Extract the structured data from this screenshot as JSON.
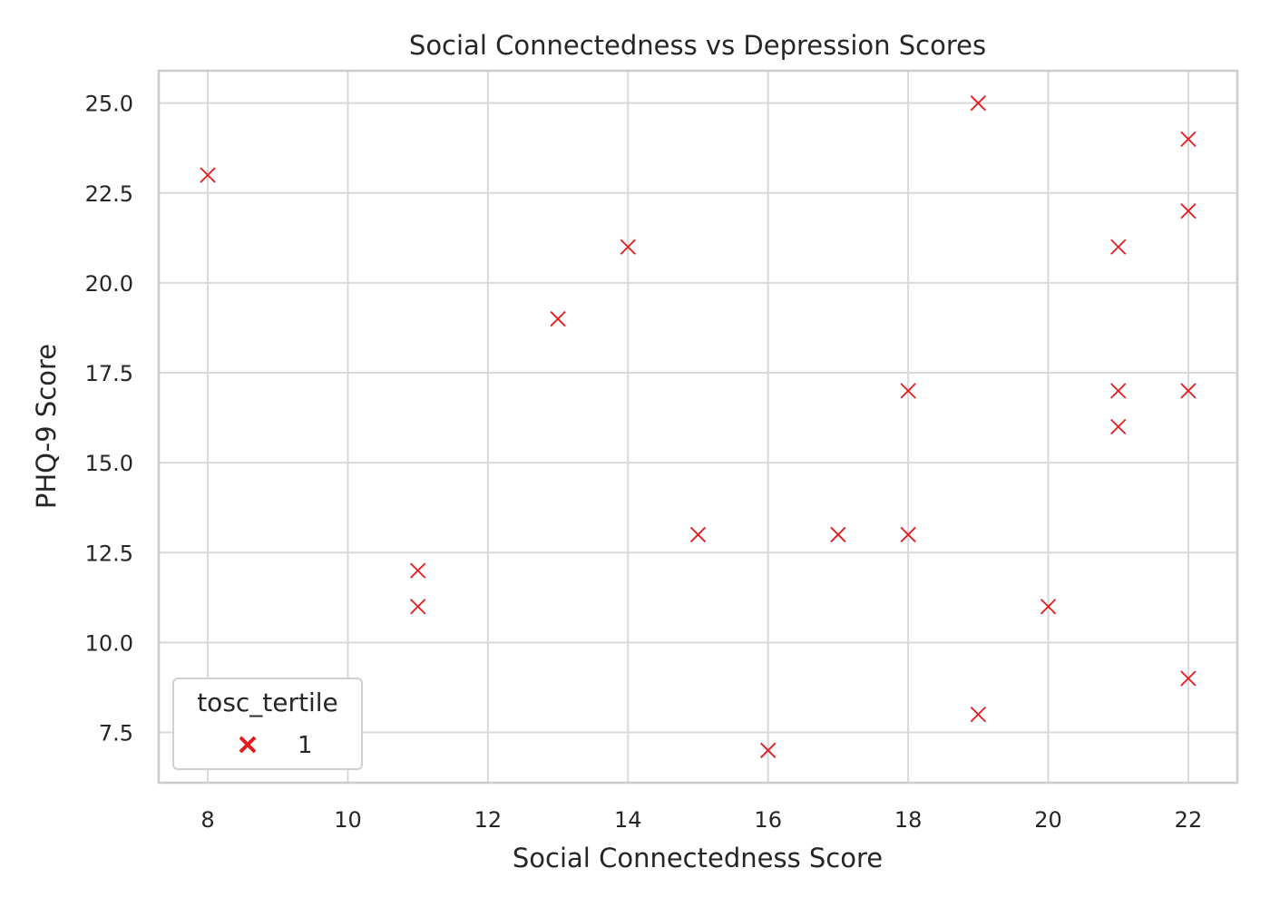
{
  "chart_data": {
    "type": "scatter",
    "title": "Social Connectedness vs Depression Scores",
    "xlabel": "Social Connectedness Score",
    "ylabel": "PHQ-9 Score",
    "xlim": [
      7.3,
      22.7
    ],
    "ylim": [
      6.1,
      25.9
    ],
    "xticks": [
      8,
      10,
      12,
      14,
      16,
      18,
      20,
      22
    ],
    "yticks": [
      7.5,
      10.0,
      12.5,
      15.0,
      17.5,
      20.0,
      22.5,
      25.0
    ],
    "xtick_labels": [
      "8",
      "10",
      "12",
      "14",
      "16",
      "18",
      "20",
      "22"
    ],
    "ytick_labels": [
      "7.5",
      "10.0",
      "12.5",
      "15.0",
      "17.5",
      "20.0",
      "22.5",
      "25.0"
    ],
    "grid": true,
    "marker": "x",
    "marker_color": "#e41a1c",
    "legend": {
      "title": "tosc_tertile",
      "placement": "lower-left",
      "entries": [
        {
          "label": "1",
          "color": "#e41a1c",
          "marker": "x"
        }
      ]
    },
    "series": [
      {
        "name": "1",
        "points": [
          {
            "x": 8,
            "y": 23
          },
          {
            "x": 11,
            "y": 12
          },
          {
            "x": 11,
            "y": 11
          },
          {
            "x": 13,
            "y": 19
          },
          {
            "x": 14,
            "y": 21
          },
          {
            "x": 15,
            "y": 13
          },
          {
            "x": 16,
            "y": 7
          },
          {
            "x": 17,
            "y": 13
          },
          {
            "x": 18,
            "y": 17
          },
          {
            "x": 18,
            "y": 13
          },
          {
            "x": 19,
            "y": 25
          },
          {
            "x": 19,
            "y": 8
          },
          {
            "x": 20,
            "y": 11
          },
          {
            "x": 21,
            "y": 21
          },
          {
            "x": 21,
            "y": 17
          },
          {
            "x": 21,
            "y": 16
          },
          {
            "x": 22,
            "y": 24
          },
          {
            "x": 22,
            "y": 22
          },
          {
            "x": 22,
            "y": 17
          },
          {
            "x": 22,
            "y": 9
          }
        ]
      }
    ]
  }
}
